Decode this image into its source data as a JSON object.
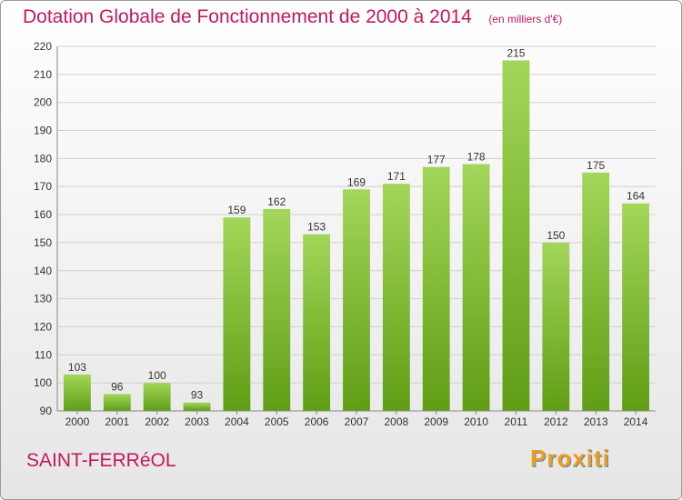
{
  "chart_data": {
    "type": "bar",
    "title": "Dotation Globale de Fonctionnement de 2000 à 2014",
    "subtitle": "(en milliers d'€)",
    "categories": [
      "2000",
      "2001",
      "2002",
      "2003",
      "2004",
      "2005",
      "2006",
      "2007",
      "2008",
      "2009",
      "2010",
      "2011",
      "2012",
      "2013",
      "2014"
    ],
    "values": [
      103,
      96,
      100,
      93,
      159,
      162,
      153,
      169,
      171,
      177,
      178,
      215,
      150,
      175,
      164
    ],
    "ylim": [
      90,
      220
    ],
    "yticks": [
      90,
      100,
      110,
      120,
      130,
      140,
      150,
      160,
      170,
      180,
      190,
      200,
      210,
      220
    ],
    "grid": true,
    "bar_color": "#7cbd2a",
    "grid_color": "#d0d0d0",
    "axis_text_color": "#333333"
  },
  "footer": {
    "commune": "SAINT-FERRéOL",
    "logo": "Proxiti"
  },
  "colors": {
    "accent": "#c2185b"
  }
}
